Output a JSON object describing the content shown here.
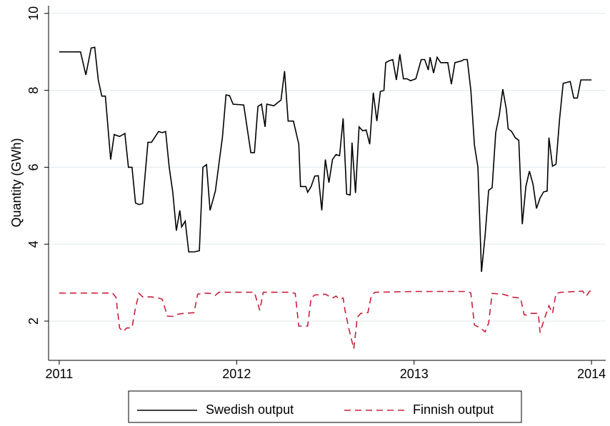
{
  "chart_data": {
    "type": "line",
    "y_label": "Quantity (GWh)",
    "xlim": [
      2010.94,
      2014.08
    ],
    "ylim": [
      0.98,
      10.2
    ],
    "xticks": [
      2011,
      2012,
      2013,
      2014
    ],
    "yticks": [
      2,
      4,
      6,
      8,
      10
    ],
    "grid": true,
    "legend": "bottom",
    "series": [
      {
        "name": "Swedish output",
        "color": "#000000",
        "dash": "solid",
        "x": [
          2011.0,
          2011.06,
          2011.12,
          2011.15,
          2011.18,
          2011.2,
          2011.22,
          2011.24,
          2011.26,
          2011.27,
          2011.29,
          2011.31,
          2011.34,
          2011.37,
          2011.39,
          2011.41,
          2011.43,
          2011.45,
          2011.47,
          2011.5,
          2011.52,
          2011.56,
          2011.58,
          2011.6,
          2011.62,
          2011.64,
          2011.66,
          2011.68,
          2011.69,
          2011.71,
          2011.73,
          2011.76,
          2011.79,
          2011.81,
          2011.83,
          2011.85,
          2011.88,
          2011.92,
          2011.94,
          2011.96,
          2011.98,
          2012.04,
          2012.08,
          2012.1,
          2012.12,
          2012.14,
          2012.16,
          2012.17,
          2012.21,
          2012.25,
          2012.27,
          2012.29,
          2012.32,
          2012.35,
          2012.36,
          2012.39,
          2012.4,
          2012.42,
          2012.44,
          2012.46,
          2012.48,
          2012.5,
          2012.52,
          2012.54,
          2012.56,
          2012.58,
          2012.6,
          2012.62,
          2012.64,
          2012.65,
          2012.67,
          2012.69,
          2012.71,
          2012.73,
          2012.75,
          2012.77,
          2012.79,
          2012.81,
          2012.83,
          2012.84,
          2012.86,
          2012.88,
          2012.9,
          2012.92,
          2012.94,
          2012.96,
          2012.98,
          2013.01,
          2013.04,
          2013.06,
          2013.08,
          2013.09,
          2013.11,
          2013.13,
          2013.15,
          2013.19,
          2013.21,
          2013.23,
          2013.27,
          2013.28,
          2013.3,
          2013.32,
          2013.34,
          2013.36,
          2013.38,
          2013.4,
          2013.42,
          2013.44,
          2013.46,
          2013.48,
          2013.5,
          2013.52,
          2013.53,
          2013.55,
          2013.57,
          2013.59,
          2013.61,
          2013.63,
          2013.65,
          2013.67,
          2013.69,
          2013.71,
          2013.73,
          2013.75,
          2013.76,
          2013.78,
          2013.8,
          2013.82,
          2013.84,
          2013.88,
          2013.9,
          2013.92,
          2013.94,
          2014.0
        ],
        "values": [
          9.0,
          9.0,
          9.0,
          8.4,
          9.1,
          9.12,
          8.27,
          7.85,
          7.85,
          7.3,
          6.2,
          6.85,
          6.8,
          6.88,
          6.0,
          6.0,
          5.07,
          5.03,
          5.06,
          6.65,
          6.65,
          6.93,
          6.9,
          6.93,
          6.0,
          5.35,
          4.35,
          4.88,
          4.45,
          4.6,
          3.8,
          3.8,
          3.83,
          6.0,
          6.07,
          4.88,
          5.38,
          6.78,
          7.88,
          7.86,
          7.64,
          7.62,
          6.38,
          6.38,
          7.58,
          7.64,
          7.05,
          7.64,
          7.6,
          7.75,
          8.5,
          7.2,
          7.2,
          6.6,
          5.5,
          5.5,
          5.35,
          5.5,
          5.77,
          5.78,
          4.88,
          6.2,
          5.6,
          6.2,
          6.33,
          6.3,
          7.27,
          5.3,
          5.28,
          6.64,
          5.33,
          7.05,
          6.95,
          6.97,
          6.6,
          7.94,
          7.2,
          7.97,
          8.0,
          8.72,
          8.77,
          8.8,
          8.27,
          8.94,
          8.3,
          8.3,
          8.25,
          8.3,
          8.8,
          8.8,
          8.53,
          8.86,
          8.45,
          8.86,
          8.72,
          8.72,
          8.16,
          8.72,
          8.77,
          8.8,
          8.8,
          8.0,
          6.58,
          6.0,
          3.28,
          4.22,
          5.4,
          5.47,
          6.9,
          7.35,
          8.03,
          7.5,
          7.0,
          6.93,
          6.77,
          6.7,
          4.52,
          5.5,
          5.9,
          5.56,
          4.93,
          5.2,
          5.36,
          5.38,
          6.77,
          6.03,
          6.08,
          7.25,
          8.18,
          8.23,
          7.8,
          7.8,
          8.27,
          8.27
        ]
      },
      {
        "name": "Finnish output",
        "color": "#c8203c",
        "dash": "dashed",
        "x": [
          2011.0,
          2011.3,
          2011.32,
          2011.34,
          2011.36,
          2011.38,
          2011.41,
          2011.43,
          2011.45,
          2011.47,
          2011.52,
          2011.56,
          2011.58,
          2011.61,
          2011.64,
          2011.67,
          2011.7,
          2011.76,
          2011.78,
          2011.81,
          2011.85,
          2011.88,
          2011.9,
          2012.1,
          2012.13,
          2012.15,
          2012.3,
          2012.33,
          2012.35,
          2012.4,
          2012.42,
          2012.44,
          2012.5,
          2012.54,
          2012.56,
          2012.58,
          2012.6,
          2012.61,
          2012.63,
          2012.66,
          2012.68,
          2012.7,
          2012.74,
          2012.76,
          2012.78,
          2013.0,
          2013.3,
          2013.32,
          2013.34,
          2013.38,
          2013.4,
          2013.42,
          2013.44,
          2013.5,
          2013.56,
          2013.6,
          2013.62,
          2013.64,
          2013.66,
          2013.7,
          2013.71,
          2013.73,
          2013.76,
          2013.78,
          2013.8,
          2013.83,
          2013.95,
          2013.97,
          2013.99,
          2014.0
        ],
        "values": [
          2.73,
          2.73,
          2.62,
          1.82,
          1.73,
          1.82,
          1.83,
          2.35,
          2.72,
          2.63,
          2.63,
          2.6,
          2.57,
          2.13,
          2.12,
          2.18,
          2.2,
          2.22,
          2.7,
          2.73,
          2.72,
          2.67,
          2.75,
          2.75,
          2.28,
          2.75,
          2.75,
          2.72,
          1.87,
          1.87,
          2.6,
          2.68,
          2.7,
          2.6,
          2.65,
          2.57,
          2.6,
          2.3,
          1.85,
          1.28,
          2.1,
          2.2,
          2.22,
          2.68,
          2.75,
          2.77,
          2.77,
          2.73,
          1.9,
          1.8,
          1.72,
          1.95,
          2.72,
          2.7,
          2.62,
          2.6,
          2.17,
          2.15,
          2.2,
          2.2,
          1.7,
          2.0,
          2.4,
          2.2,
          2.72,
          2.75,
          2.78,
          2.65,
          2.78,
          2.78
        ]
      }
    ]
  }
}
